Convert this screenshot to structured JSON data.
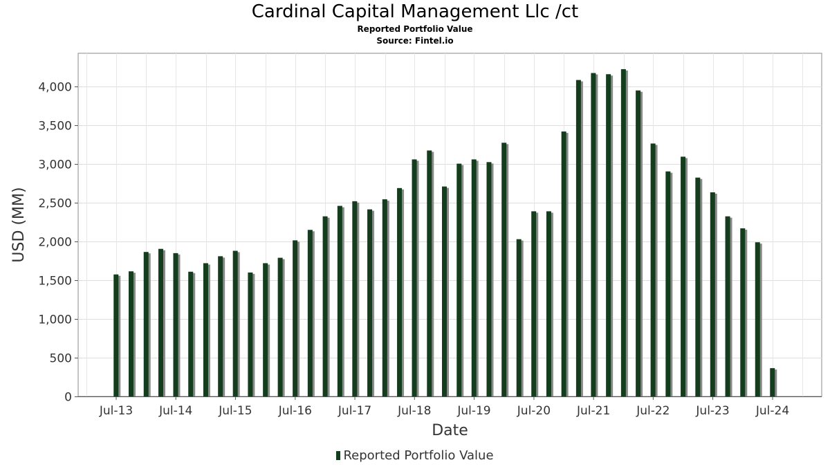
{
  "chart_data": {
    "type": "bar",
    "title": "Cardinal Capital Management Llc /ct",
    "subtitle": "Reported Portfolio Value",
    "source": "Source: Fintel.io",
    "xlabel": "Date",
    "ylabel": "USD (MM)",
    "ylim": [
      0,
      4430
    ],
    "yticks": [
      0,
      500,
      1000,
      1500,
      2000,
      2500,
      3000,
      3500,
      4000
    ],
    "ytick_labels": [
      "0",
      "500",
      "1,000",
      "1,500",
      "2,000",
      "2,500",
      "3,000",
      "3,500",
      "4,000"
    ],
    "xticks": [
      "Jul-13",
      "Jul-14",
      "Jul-15",
      "Jul-16",
      "Jul-17",
      "Jul-18",
      "Jul-19",
      "Jul-20",
      "Jul-21",
      "Jul-22",
      "Jul-23",
      "Jul-24"
    ],
    "grid": true,
    "legend_position": "bottom",
    "series": [
      {
        "name": "Reported Portfolio Value",
        "color": "#143d1e",
        "x": [
          "2013-06-30",
          "2013-09-30",
          "2013-12-31",
          "2014-03-31",
          "2014-06-30",
          "2014-09-30",
          "2014-12-31",
          "2015-03-31",
          "2015-06-30",
          "2015-09-30",
          "2015-12-31",
          "2016-03-31",
          "2016-06-30",
          "2016-09-30",
          "2016-12-31",
          "2017-03-31",
          "2017-06-30",
          "2017-09-30",
          "2017-12-31",
          "2018-03-31",
          "2018-06-30",
          "2018-09-30",
          "2018-12-31",
          "2019-03-31",
          "2019-06-30",
          "2019-09-30",
          "2019-12-31",
          "2020-03-31",
          "2020-06-30",
          "2020-09-30",
          "2020-12-31",
          "2021-03-31",
          "2021-06-30",
          "2021-09-30",
          "2021-12-31",
          "2022-03-31",
          "2022-06-30",
          "2022-09-30",
          "2022-12-31",
          "2023-03-31",
          "2023-06-30",
          "2023-09-30",
          "2023-12-31",
          "2024-03-31",
          "2024-06-30"
        ],
        "values": [
          1575,
          1615,
          1865,
          1905,
          1850,
          1610,
          1720,
          1810,
          1880,
          1600,
          1720,
          1790,
          2015,
          2150,
          2325,
          2460,
          2520,
          2415,
          2545,
          2690,
          3060,
          3175,
          2710,
          3005,
          3060,
          3025,
          3275,
          2030,
          2390,
          2390,
          3420,
          4085,
          4175,
          4160,
          4225,
          3950,
          3265,
          2905,
          3095,
          2825,
          2635,
          2325,
          2170,
          1990,
          365
        ]
      }
    ]
  }
}
